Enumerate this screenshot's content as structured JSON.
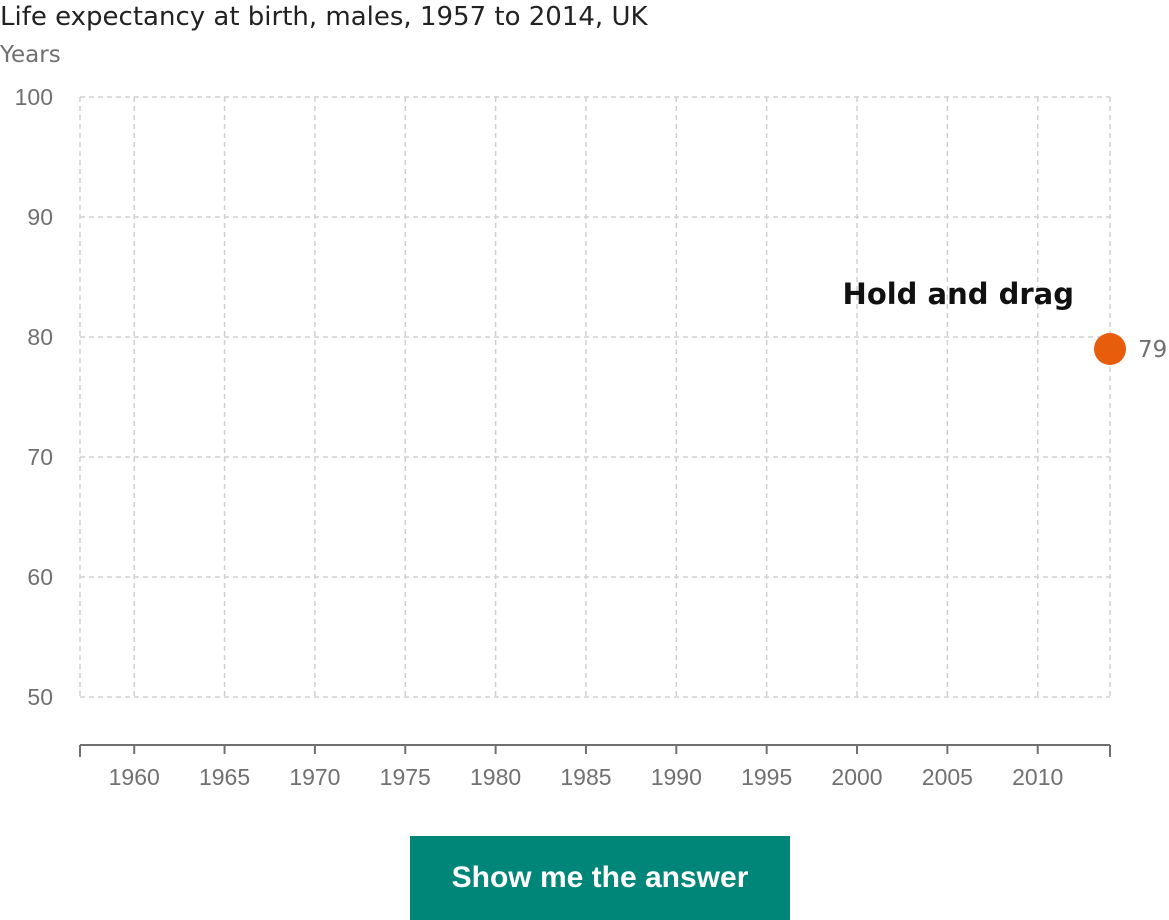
{
  "chart_data": {
    "type": "line",
    "title": "Life expectancy at birth, males, 1957 to 2014, UK",
    "ylabel": "Years",
    "xlabel": "",
    "xlim": [
      1957,
      2014
    ],
    "ylim": [
      50,
      100
    ],
    "y_ticks": [
      50,
      60,
      70,
      80,
      90,
      100
    ],
    "x_ticks": [
      1960,
      1965,
      1970,
      1975,
      1980,
      1985,
      1990,
      1995,
      2000,
      2005,
      2010
    ],
    "grid": true,
    "series": [
      {
        "points": [
          {
            "x": 2014,
            "y": 79,
            "label": "79"
          }
        ]
      }
    ],
    "annotation": "Hold and drag",
    "colors": {
      "handle": "#e85d0c",
      "grid": "#d0d0d0",
      "axis": "#707070"
    }
  },
  "controls": {
    "answer_button_label": "Show me the answer",
    "answer_button_color": "#008579"
  }
}
